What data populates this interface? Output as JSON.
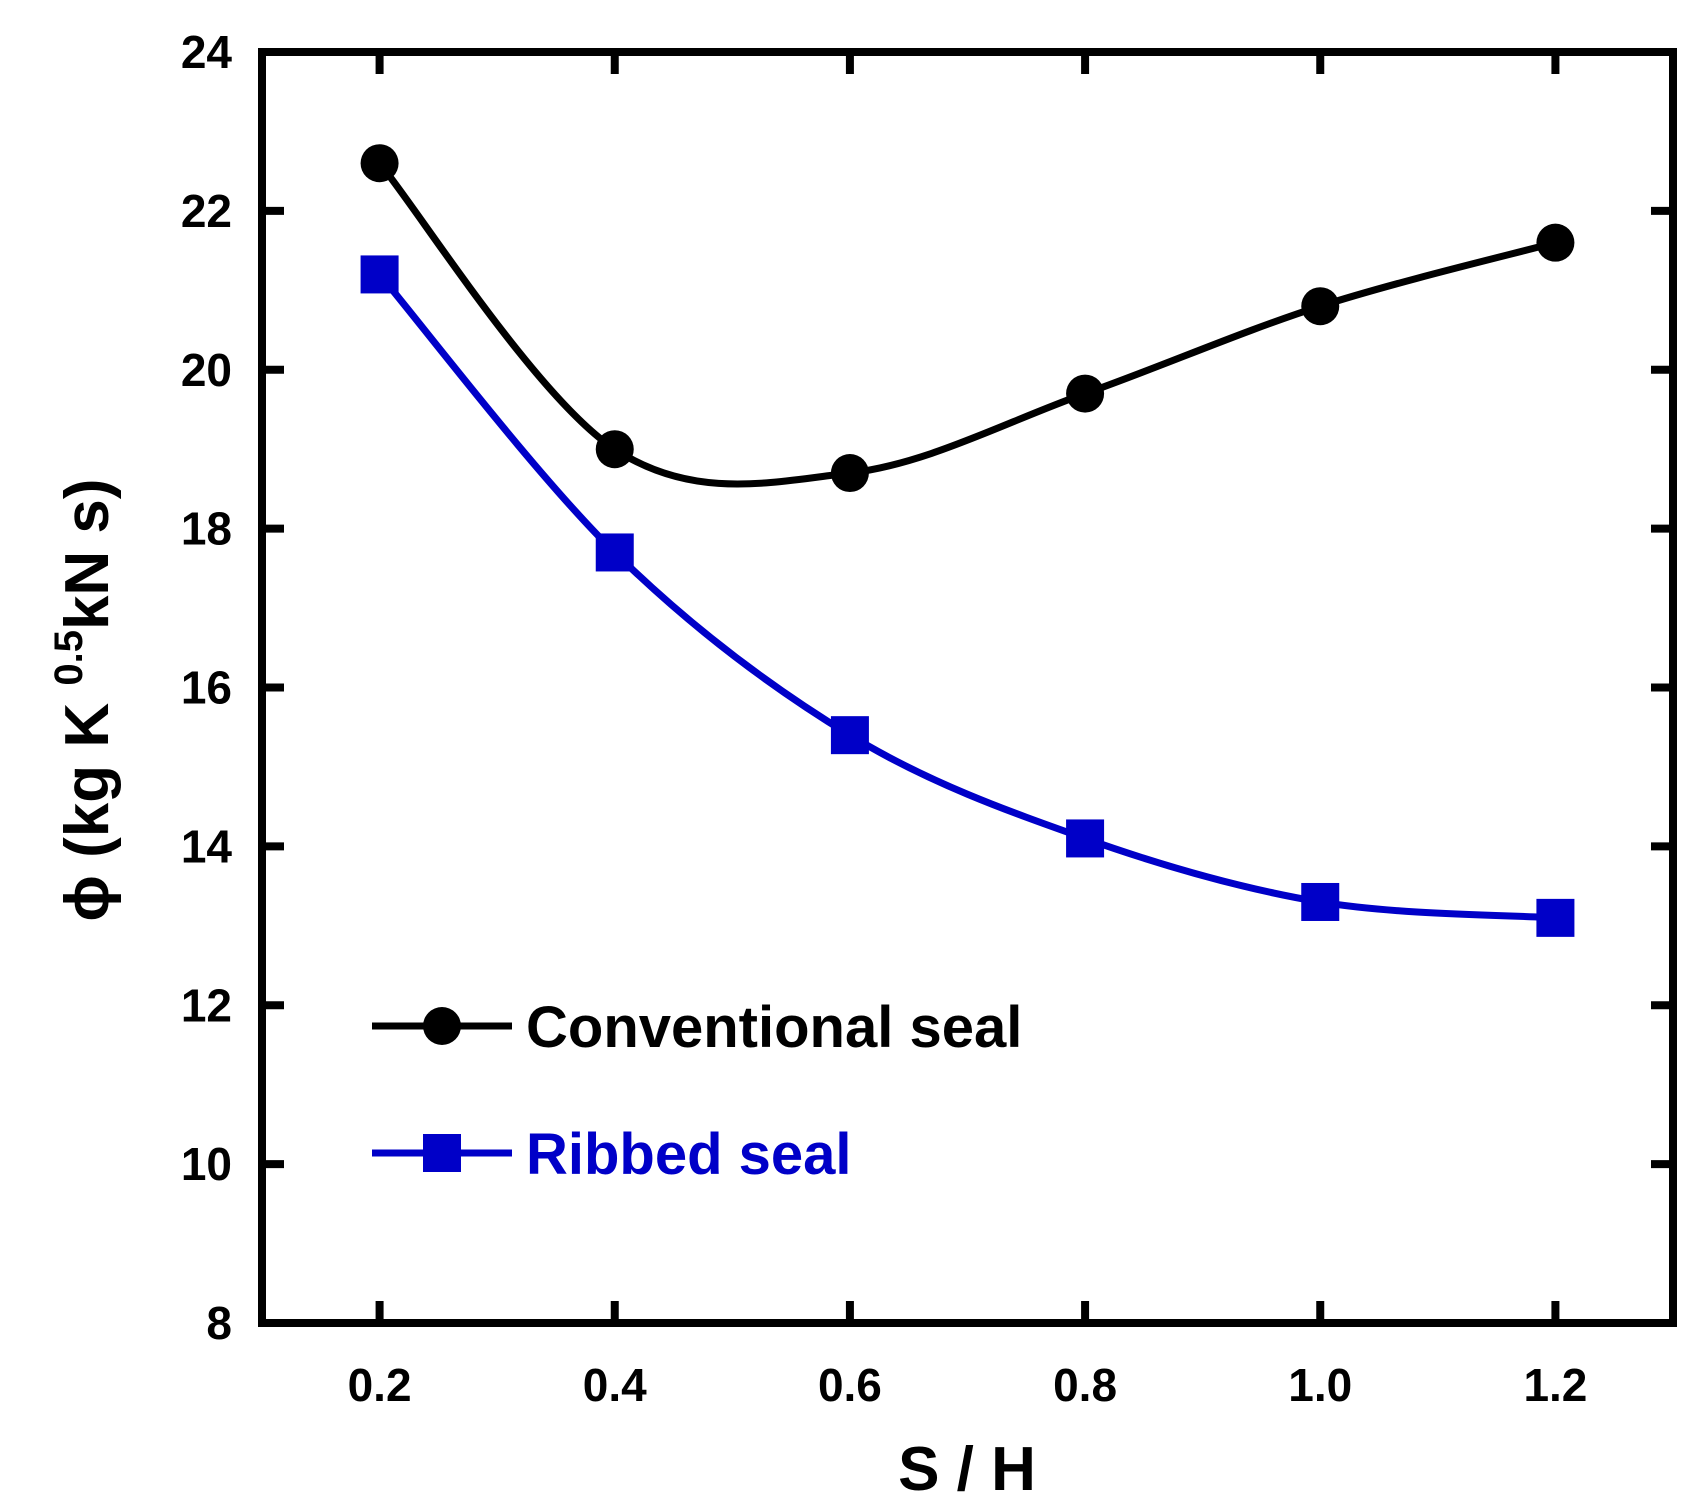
{
  "chart_data": {
    "type": "line",
    "title": "",
    "xlabel": "S / H",
    "ylabel": {
      "pre": "ϕ (kg K ",
      "sup": "0.5",
      "post": "kN s)"
    },
    "xlim": [
      0.1,
      1.3
    ],
    "ylim": [
      8,
      24
    ],
    "xticks": [
      0.2,
      0.4,
      0.6,
      0.8,
      1.0,
      1.2
    ],
    "xtick_labels": [
      "0.2",
      "0.4",
      "0.6",
      "0.8",
      "1.0",
      "1.2"
    ],
    "yticks": [
      8,
      10,
      12,
      14,
      16,
      18,
      20,
      22,
      24
    ],
    "ytick_labels": [
      "8",
      "10",
      "12",
      "14",
      "16",
      "18",
      "20",
      "22",
      "24"
    ],
    "grid": false,
    "legend_position": "bottom-left",
    "series": [
      {
        "name": "Conventional seal",
        "marker": "circle",
        "color": "#000000",
        "x": [
          0.2,
          0.4,
          0.6,
          0.8,
          1.0,
          1.2
        ],
        "y": [
          22.6,
          19.0,
          18.7,
          19.7,
          20.8,
          21.6
        ]
      },
      {
        "name": "Ribbed seal",
        "marker": "square",
        "color": "#0000c8",
        "x": [
          0.2,
          0.4,
          0.6,
          0.8,
          1.0,
          1.2
        ],
        "y": [
          21.2,
          17.7,
          15.4,
          14.1,
          13.3,
          13.1
        ]
      }
    ]
  }
}
